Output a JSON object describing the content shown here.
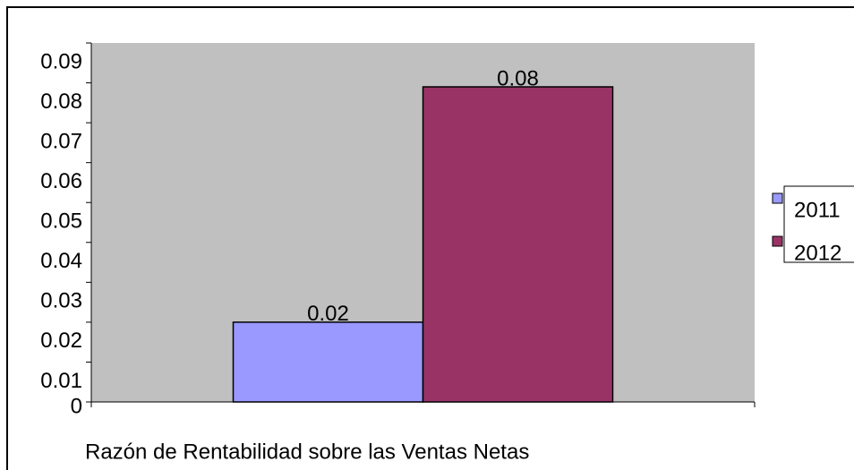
{
  "chart_data": {
    "type": "bar",
    "title": "Razón de Rentabilidad sobre las Ventas Netas",
    "categories": [
      null
    ],
    "series": [
      {
        "name": "2011",
        "color": "#9999ff",
        "values": [
          0.02
        ],
        "value_labels": [
          "0.02"
        ]
      },
      {
        "name": "2012",
        "color": "#993366",
        "values": [
          0.079
        ],
        "value_labels": [
          "0.08"
        ]
      }
    ],
    "ylim": [
      0,
      0.09
    ],
    "yticks": [
      0,
      0.01,
      0.02,
      0.03,
      0.04,
      0.05,
      0.06,
      0.07,
      0.08,
      0.09
    ],
    "grid": false,
    "legend": "right"
  }
}
